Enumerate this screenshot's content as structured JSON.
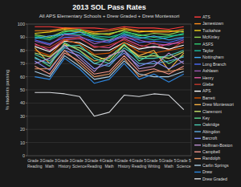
{
  "chart_data": {
    "type": "line",
    "title": "2013 SOL Pass Rates",
    "subtitle": "All APS Elementary Schools + Drew Graded + Drew Montessori",
    "y_label": "% students passing",
    "categories": [
      "Grade 3 Reading",
      "Grade 3 Math",
      "Grade 3 History",
      "Grade 3 Science",
      "Grade 4 Reading",
      "Grade 4 Math",
      "Grade 4 History",
      "Grade 5 Reading",
      "Grade 5 Writing",
      "Grade 5 Math",
      "Grade 5 Science"
    ],
    "ylim": [
      0,
      100
    ],
    "yticks": [
      0,
      10,
      20,
      30,
      40,
      50,
      60,
      70,
      80,
      90,
      100
    ],
    "grid": true,
    "legend": "right",
    "series": [
      {
        "name": "ATS",
        "color": "#ff3b3b",
        "values": [
          98,
          98,
          97,
          97,
          97,
          96,
          98,
          97,
          97,
          96,
          98
        ]
      },
      {
        "name": "Jamestown",
        "color": "#ff8c1a",
        "values": [
          95,
          95,
          97,
          96,
          94,
          95,
          97,
          95,
          94,
          94,
          96
        ]
      },
      {
        "name": "Tuckahoe",
        "color": "#f2d21b",
        "values": [
          93,
          94,
          96,
          95,
          93,
          92,
          96,
          94,
          95,
          95,
          94
        ]
      },
      {
        "name": "McKinley",
        "color": "#8fd14f",
        "values": [
          92,
          90,
          95,
          94,
          92,
          93,
          95,
          91,
          93,
          92,
          95
        ]
      },
      {
        "name": "ASFS",
        "color": "#2ecc71",
        "values": [
          91,
          89,
          94,
          96,
          90,
          88,
          94,
          92,
          90,
          91,
          92
        ]
      },
      {
        "name": "Taylor",
        "color": "#1abc9c",
        "values": [
          90,
          88,
          93,
          92,
          91,
          90,
          93,
          90,
          88,
          90,
          93
        ]
      },
      {
        "name": "Nottingham",
        "color": "#3fa9f5",
        "values": [
          89,
          91,
          92,
          94,
          89,
          87,
          92,
          89,
          91,
          88,
          90
        ]
      },
      {
        "name": "Long Branch",
        "color": "#4a6cf7",
        "values": [
          88,
          85,
          90,
          90,
          87,
          86,
          91,
          86,
          87,
          86,
          89
        ]
      },
      {
        "name": "Ashlawn",
        "color": "#9b59b6",
        "values": [
          87,
          84,
          92,
          91,
          85,
          88,
          90,
          88,
          85,
          84,
          88
        ]
      },
      {
        "name": "Henry",
        "color": "#e056a0",
        "values": [
          85,
          80,
          88,
          89,
          83,
          82,
          89,
          84,
          82,
          85,
          86
        ]
      },
      {
        "name": "Glebe",
        "color": "#c0392b",
        "values": [
          84,
          82,
          89,
          90,
          82,
          84,
          88,
          82,
          86,
          80,
          87
        ]
      },
      {
        "name": "APS",
        "color": "#ffffff",
        "values": [
          83,
          79,
          87,
          86,
          80,
          80,
          86,
          81,
          83,
          81,
          84
        ]
      },
      {
        "name": "Barrett",
        "color": "#d35400",
        "values": [
          80,
          76,
          88,
          85,
          77,
          78,
          86,
          79,
          78,
          80,
          82
        ]
      },
      {
        "name": "Drew Montessori",
        "color": "#f5b041",
        "values": [
          82,
          70,
          85,
          80,
          72,
          75,
          84,
          76,
          80,
          65,
          78
        ]
      },
      {
        "name": "Claremont",
        "color": "#c8e66a",
        "values": [
          78,
          75,
          84,
          82,
          76,
          72,
          84,
          75,
          76,
          74,
          79
        ]
      },
      {
        "name": "Key",
        "color": "#58d68d",
        "values": [
          75,
          68,
          86,
          80,
          70,
          74,
          85,
          72,
          78,
          70,
          76
        ]
      },
      {
        "name": "Oakridge",
        "color": "#48c9b0",
        "values": [
          77,
          72,
          83,
          84,
          74,
          70,
          82,
          74,
          74,
          76,
          80
        ]
      },
      {
        "name": "Abingdon",
        "color": "#5dade2",
        "values": [
          74,
          70,
          82,
          78,
          70,
          68,
          80,
          70,
          70,
          72,
          75
        ]
      },
      {
        "name": "Barcroft",
        "color": "#7f8cf5",
        "values": [
          72,
          65,
          80,
          76,
          66,
          70,
          78,
          68,
          72,
          66,
          72
        ]
      },
      {
        "name": "Hoffman-Boston",
        "color": "#bb8fce",
        "values": [
          70,
          74,
          84,
          74,
          64,
          76,
          80,
          66,
          68,
          78,
          70
        ]
      },
      {
        "name": "Campbell",
        "color": "#f1948a",
        "values": [
          68,
          62,
          78,
          72,
          62,
          64,
          76,
          64,
          66,
          62,
          68
        ]
      },
      {
        "name": "Randolph",
        "color": "#e59866",
        "values": [
          66,
          66,
          80,
          70,
          60,
          62,
          74,
          60,
          64,
          64,
          66
        ]
      },
      {
        "name": "Carlin Springs",
        "color": "#a9cce3",
        "values": [
          64,
          60,
          76,
          68,
          58,
          60,
          72,
          62,
          60,
          60,
          64
        ]
      },
      {
        "name": "Drew",
        "color": "#2e86de",
        "values": [
          60,
          58,
          74,
          66,
          55,
          58,
          70,
          58,
          62,
          56,
          62
        ]
      },
      {
        "name": "Drew Graded",
        "color": "#d5d8dc",
        "values": [
          48,
          48,
          47,
          45,
          30,
          33,
          46,
          45,
          47,
          46,
          35
        ]
      }
    ]
  }
}
